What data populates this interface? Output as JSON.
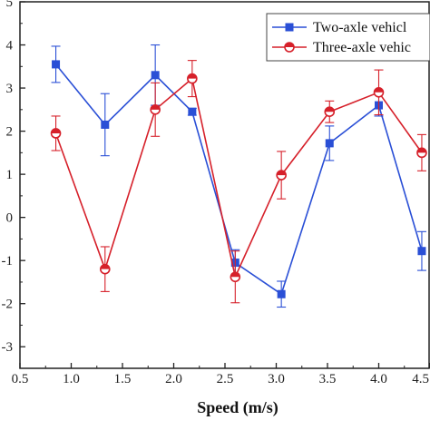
{
  "chart_data": {
    "type": "line",
    "title": "",
    "xlabel": "Speed (m/s)",
    "ylabel": "",
    "xlim": [
      0.5,
      4.5
    ],
    "ylim": [
      -3.5,
      5
    ],
    "x_ticks": [
      0.5,
      1.0,
      1.5,
      2.0,
      2.5,
      3.0,
      3.5,
      4.0,
      4.5
    ],
    "x_tick_labels": [
      "0.5",
      "1.0",
      "1.5",
      "2.0",
      "2.5",
      "3.0",
      "3.5",
      "4.0",
      "4.5"
    ],
    "y_ticks": [
      5,
      4,
      3,
      2,
      1,
      0,
      -1,
      -2,
      -3
    ],
    "y_tick_labels": [
      "5",
      "4",
      "3",
      "2",
      "1",
      "0",
      "-1",
      "-2",
      "-3"
    ],
    "grid": false,
    "legend_position": "top-right",
    "series": [
      {
        "name": "Two-axle vehicl",
        "color": "#2a4fd6",
        "marker": "square",
        "x": [
          0.85,
          1.33,
          1.82,
          2.18,
          2.6,
          3.05,
          3.52,
          4.0,
          4.42
        ],
        "y": [
          3.55,
          2.15,
          3.3,
          2.45,
          -1.05,
          -1.78,
          1.72,
          2.6,
          -0.78
        ],
        "err": [
          0.42,
          0.72,
          0.7,
          0.08,
          0.3,
          0.3,
          0.4,
          0.25,
          0.45
        ]
      },
      {
        "name": "Three-axle vehic",
        "color": "#d6202a",
        "marker": "circle",
        "x": [
          0.85,
          1.33,
          1.82,
          2.18,
          2.6,
          3.05,
          3.52,
          4.0,
          4.42
        ],
        "y": [
          1.95,
          -1.2,
          2.5,
          3.22,
          -1.38,
          0.98,
          2.45,
          2.9,
          1.5
        ],
        "err": [
          0.4,
          0.52,
          0.62,
          0.42,
          0.6,
          0.55,
          0.25,
          0.52,
          0.42
        ]
      }
    ]
  }
}
